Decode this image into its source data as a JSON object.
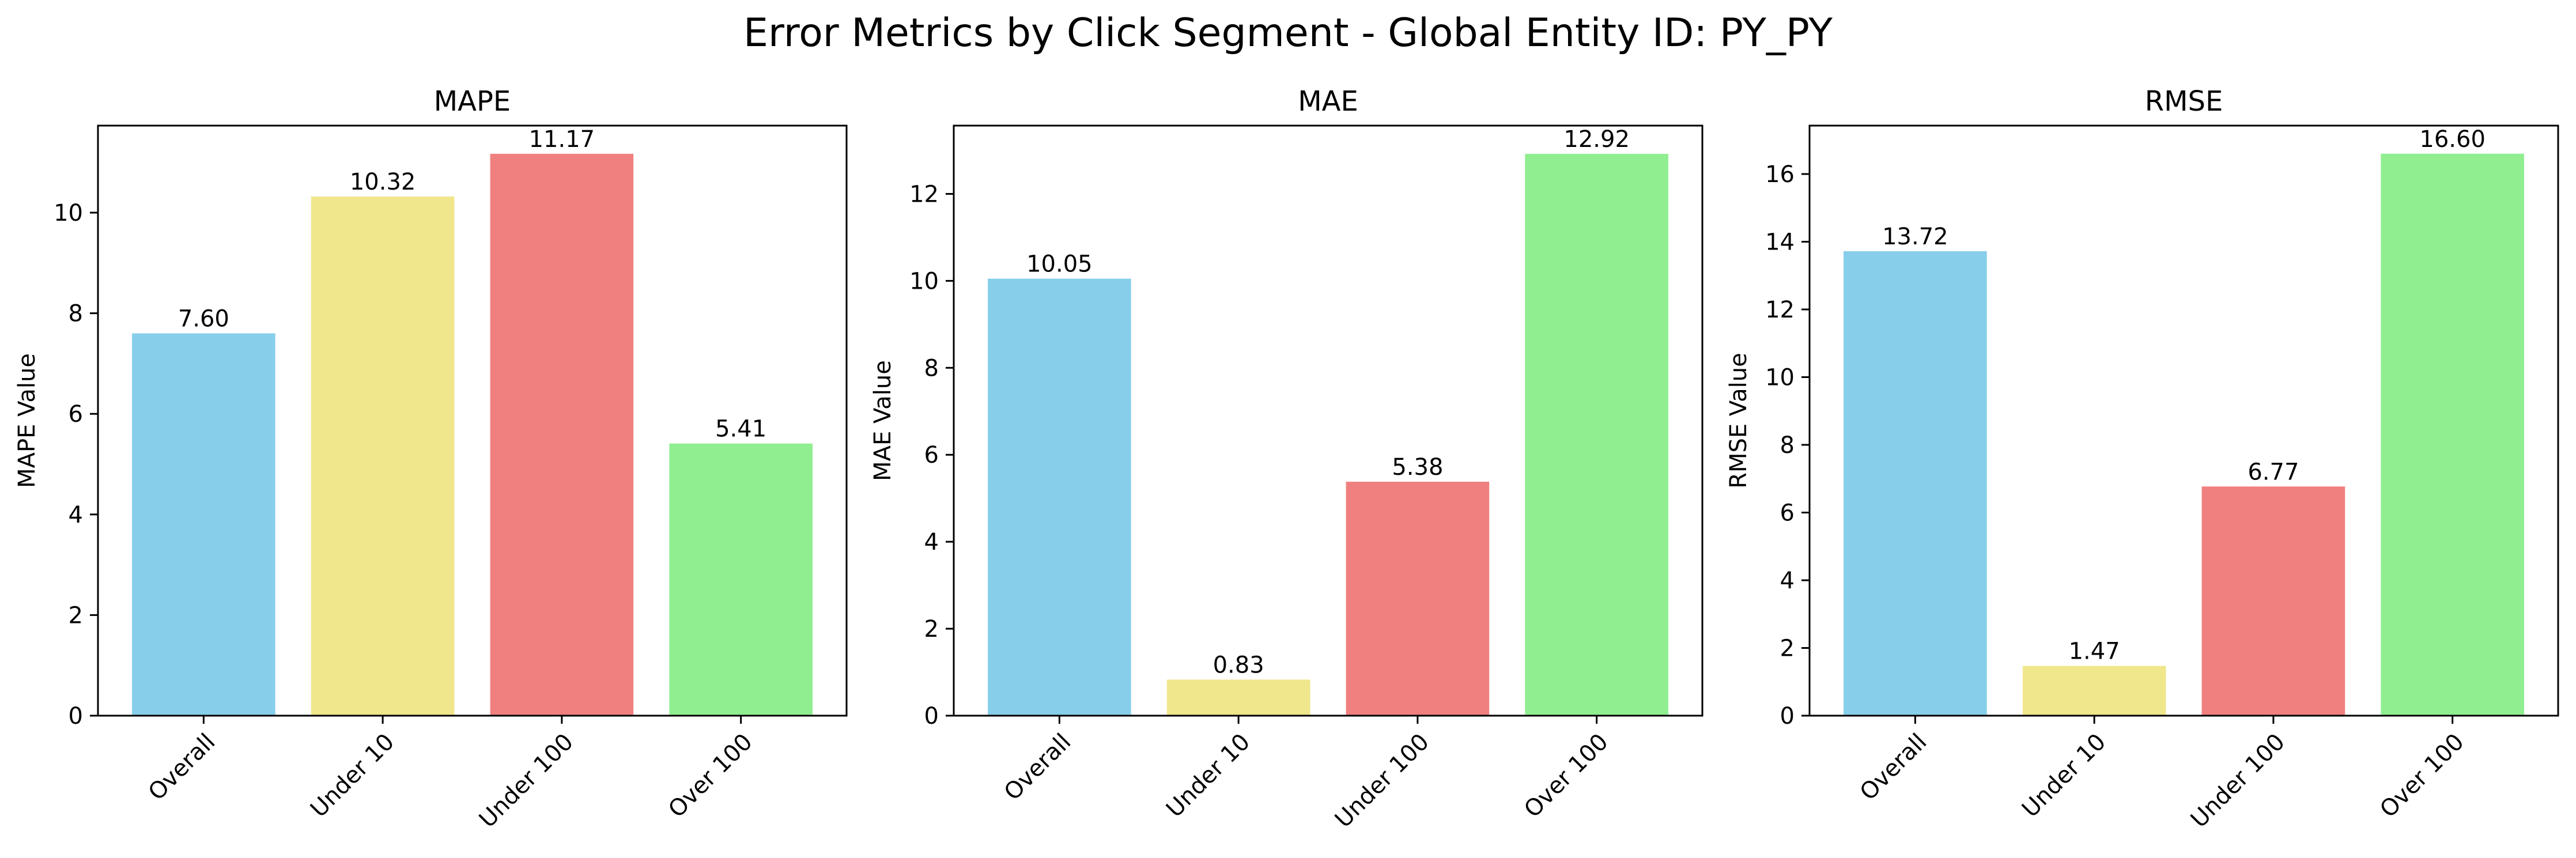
{
  "suptitle": "Error Metrics by Click Segment - Global Entity ID: PY_PY",
  "colors": [
    "#87ceeb",
    "#f0e68c",
    "#f08080",
    "#90ee90"
  ],
  "chart_data": [
    {
      "type": "bar",
      "title": "MAPE",
      "ylabel": "MAPE Value",
      "xlabel": "",
      "categories": [
        "Overall",
        "Under 10",
        "Under 100",
        "Over 100"
      ],
      "values": [
        7.6,
        10.32,
        11.17,
        5.41
      ],
      "value_labels": [
        "7.60",
        "10.32",
        "11.17",
        "5.41"
      ],
      "ylim": [
        0,
        11.73
      ],
      "yticks": [
        0,
        2,
        4,
        6,
        8,
        10
      ],
      "grid": false,
      "legend": "none"
    },
    {
      "type": "bar",
      "title": "MAE",
      "ylabel": "MAE Value",
      "xlabel": "",
      "categories": [
        "Overall",
        "Under 10",
        "Under 100",
        "Over 100"
      ],
      "values": [
        10.05,
        0.83,
        5.38,
        12.92
      ],
      "value_labels": [
        "10.05",
        "0.83",
        "5.38",
        "12.92"
      ],
      "ylim": [
        0,
        13.57
      ],
      "yticks": [
        0,
        2,
        4,
        6,
        8,
        10,
        12
      ],
      "grid": false,
      "legend": "none"
    },
    {
      "type": "bar",
      "title": "RMSE",
      "ylabel": "RMSE Value",
      "xlabel": "",
      "categories": [
        "Overall",
        "Under 10",
        "Under 100",
        "Over 100"
      ],
      "values": [
        13.72,
        1.47,
        6.77,
        16.6
      ],
      "value_labels": [
        "13.72",
        "1.47",
        "6.77",
        "16.60"
      ],
      "ylim": [
        0,
        17.43
      ],
      "yticks": [
        0,
        2,
        4,
        6,
        8,
        10,
        12,
        14,
        16
      ],
      "grid": false,
      "legend": "none"
    }
  ]
}
